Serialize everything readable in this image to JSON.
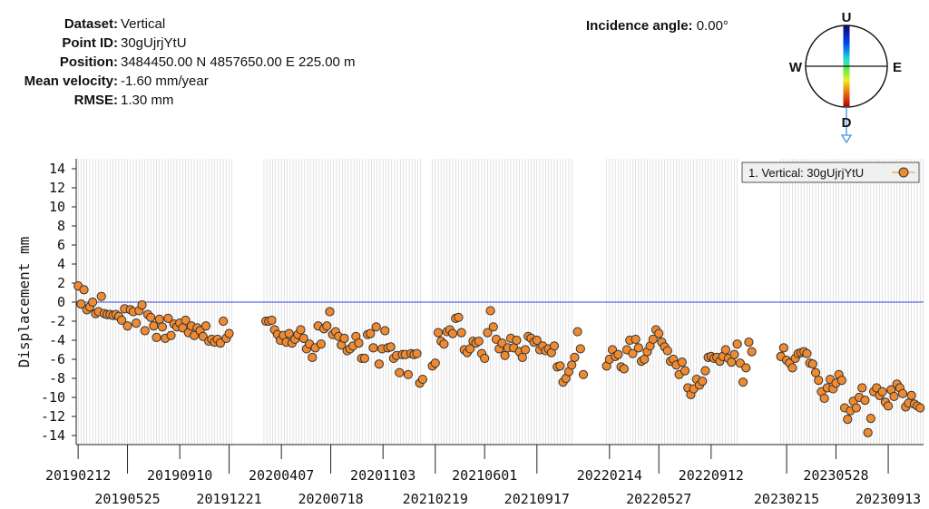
{
  "info": {
    "dataset_label": "Dataset:",
    "dataset": "Vertical",
    "point_label": "Point ID:",
    "point_id": "30gUjrjYtU",
    "position_label": "Position:",
    "position": "3484450.00 N 4857650.00 E 225.00 m",
    "velocity_label": "Mean velocity:",
    "velocity": "-1.60 mm/year",
    "rmse_label": "RMSE:",
    "rmse": "1.30 mm",
    "incidence_label": "Incidence angle:",
    "incidence": "0.00°"
  },
  "compass": {
    "north": "U",
    "south": "D",
    "west": "W",
    "east": "E"
  },
  "colors": {
    "marker": "#f08a30",
    "marker_edge": "#333333",
    "zero_line": "#3344dd",
    "grid": "#cfcfcf",
    "arrow": "#4a90e2"
  },
  "chart_data": {
    "type": "scatter",
    "ylabel": "Displacement mm",
    "ylim": [
      -15,
      15
    ],
    "yticks": [
      14,
      12,
      10,
      8,
      6,
      4,
      2,
      0,
      -2,
      -4,
      -6,
      -8,
      -10,
      -12,
      -14
    ],
    "xlim": [
      "2019-02-08",
      "2023-11-25"
    ],
    "xticks_top": [
      "20190212",
      "20190910",
      "20200407",
      "20201103",
      "20210601",
      "20220214",
      "20220912",
      "20230528"
    ],
    "xticks_bottom": [
      "20190525",
      "20191221",
      "20200718",
      "20210219",
      "20210917",
      "20220527",
      "20230215",
      "20230913"
    ],
    "legend": {
      "label": "1. Vertical: 30gUjrjYtU",
      "position": "top-right"
    },
    "gaps": [
      [
        "2019-12-29",
        "2020-03-01"
      ],
      [
        "2021-01-25",
        "2021-02-12"
      ],
      [
        "2021-12-01",
        "2022-02-07"
      ],
      [
        "2022-11-06",
        "2023-01-31"
      ]
    ],
    "series": [
      {
        "name": "1. Vertical: 30gUjrjYtU",
        "points": [
          [
            "2019-02-12",
            1.7
          ],
          [
            "2019-02-18",
            -0.2
          ],
          [
            "2019-02-24",
            1.3
          ],
          [
            "2019-03-02",
            -0.8
          ],
          [
            "2019-03-08",
            -0.5
          ],
          [
            "2019-03-14",
            0.0
          ],
          [
            "2019-03-20",
            -1.2
          ],
          [
            "2019-03-26",
            -1.0
          ],
          [
            "2019-04-01",
            0.6
          ],
          [
            "2019-04-07",
            -1.2
          ],
          [
            "2019-04-13",
            -1.3
          ],
          [
            "2019-04-19",
            -1.3
          ],
          [
            "2019-04-25",
            -1.4
          ],
          [
            "2019-05-01",
            -1.3
          ],
          [
            "2019-05-07",
            -1.5
          ],
          [
            "2019-05-13",
            -1.9
          ],
          [
            "2019-05-19",
            -0.7
          ],
          [
            "2019-05-25",
            -2.5
          ],
          [
            "2019-05-31",
            -0.8
          ],
          [
            "2019-06-06",
            -1.0
          ],
          [
            "2019-06-12",
            -2.2
          ],
          [
            "2019-06-18",
            -0.9
          ],
          [
            "2019-06-24",
            -0.3
          ],
          [
            "2019-06-30",
            -3.0
          ],
          [
            "2019-07-06",
            -1.3
          ],
          [
            "2019-07-12",
            -1.6
          ],
          [
            "2019-07-18",
            -2.5
          ],
          [
            "2019-07-24",
            -3.7
          ],
          [
            "2019-07-30",
            -1.8
          ],
          [
            "2019-08-05",
            -2.6
          ],
          [
            "2019-08-11",
            -3.8
          ],
          [
            "2019-08-17",
            -1.7
          ],
          [
            "2019-08-23",
            -3.5
          ],
          [
            "2019-08-29",
            -2.3
          ],
          [
            "2019-09-04",
            -2.6
          ],
          [
            "2019-09-10",
            -2.2
          ],
          [
            "2019-09-16",
            -2.7
          ],
          [
            "2019-09-22",
            -1.9
          ],
          [
            "2019-09-28",
            -3.2
          ],
          [
            "2019-10-04",
            -2.5
          ],
          [
            "2019-10-10",
            -3.5
          ],
          [
            "2019-10-16",
            -2.7
          ],
          [
            "2019-10-22",
            -3.0
          ],
          [
            "2019-10-28",
            -3.6
          ],
          [
            "2019-11-03",
            -2.5
          ],
          [
            "2019-11-09",
            -4.1
          ],
          [
            "2019-11-15",
            -3.9
          ],
          [
            "2019-11-21",
            -4.2
          ],
          [
            "2019-11-27",
            -3.9
          ],
          [
            "2019-12-03",
            -4.3
          ],
          [
            "2019-12-09",
            -2.0
          ],
          [
            "2019-12-15",
            -3.8
          ],
          [
            "2019-12-21",
            -3.3
          ],
          [
            "2020-03-06",
            -2.0
          ],
          [
            "2020-03-12",
            -2.0
          ],
          [
            "2020-03-18",
            -1.9
          ],
          [
            "2020-03-24",
            -2.9
          ],
          [
            "2020-03-30",
            -3.4
          ],
          [
            "2020-04-05",
            -4.0
          ],
          [
            "2020-04-11",
            -3.5
          ],
          [
            "2020-04-17",
            -4.2
          ],
          [
            "2020-04-23",
            -3.3
          ],
          [
            "2020-04-29",
            -4.3
          ],
          [
            "2020-05-05",
            -3.9
          ],
          [
            "2020-05-11",
            -3.4
          ],
          [
            "2020-05-17",
            -2.9
          ],
          [
            "2020-05-23",
            -3.8
          ],
          [
            "2020-05-29",
            -4.9
          ],
          [
            "2020-06-04",
            -4.4
          ],
          [
            "2020-06-10",
            -5.8
          ],
          [
            "2020-06-16",
            -4.8
          ],
          [
            "2020-06-22",
            -2.5
          ],
          [
            "2020-06-28",
            -4.4
          ],
          [
            "2020-07-04",
            -2.8
          ],
          [
            "2020-07-10",
            -2.5
          ],
          [
            "2020-07-16",
            -1.0
          ],
          [
            "2020-07-22",
            -3.4
          ],
          [
            "2020-07-28",
            -3.1
          ],
          [
            "2020-08-03",
            -3.6
          ],
          [
            "2020-08-09",
            -4.5
          ],
          [
            "2020-08-15",
            -3.8
          ],
          [
            "2020-08-21",
            -5.1
          ],
          [
            "2020-08-27",
            -4.9
          ],
          [
            "2020-09-02",
            -4.6
          ],
          [
            "2020-09-08",
            -3.6
          ],
          [
            "2020-09-14",
            -4.3
          ],
          [
            "2020-09-20",
            -5.9
          ],
          [
            "2020-09-26",
            -5.9
          ],
          [
            "2020-10-02",
            -3.4
          ],
          [
            "2020-10-08",
            -3.3
          ],
          [
            "2020-10-14",
            -4.8
          ],
          [
            "2020-10-20",
            -2.6
          ],
          [
            "2020-10-26",
            -6.5
          ],
          [
            "2020-11-01",
            -4.9
          ],
          [
            "2020-11-07",
            -3.0
          ],
          [
            "2020-11-13",
            -4.8
          ],
          [
            "2020-11-19",
            -4.7
          ],
          [
            "2020-11-25",
            -5.9
          ],
          [
            "2020-12-01",
            -5.6
          ],
          [
            "2020-12-07",
            -7.4
          ],
          [
            "2020-12-13",
            -5.5
          ],
          [
            "2020-12-19",
            -5.5
          ],
          [
            "2020-12-25",
            -7.6
          ],
          [
            "2020-12-31",
            -5.4
          ],
          [
            "2021-01-06",
            -5.5
          ],
          [
            "2021-01-12",
            -5.4
          ],
          [
            "2021-01-18",
            -8.5
          ],
          [
            "2021-01-24",
            -8.1
          ],
          [
            "2021-02-13",
            -6.7
          ],
          [
            "2021-02-19",
            -6.4
          ],
          [
            "2021-02-25",
            -3.2
          ],
          [
            "2021-03-03",
            -4.1
          ],
          [
            "2021-03-09",
            -4.4
          ],
          [
            "2021-03-15",
            -3.1
          ],
          [
            "2021-03-21",
            -2.9
          ],
          [
            "2021-03-27",
            -3.3
          ],
          [
            "2021-04-02",
            -1.7
          ],
          [
            "2021-04-08",
            -1.6
          ],
          [
            "2021-04-14",
            -3.2
          ],
          [
            "2021-04-20",
            -5.0
          ],
          [
            "2021-04-26",
            -5.3
          ],
          [
            "2021-05-02",
            -4.9
          ],
          [
            "2021-05-08",
            -4.1
          ],
          [
            "2021-05-14",
            -4.3
          ],
          [
            "2021-05-20",
            -4.1
          ],
          [
            "2021-05-26",
            -5.4
          ],
          [
            "2021-06-01",
            -5.9
          ],
          [
            "2021-06-07",
            -3.2
          ],
          [
            "2021-06-13",
            -0.9
          ],
          [
            "2021-06-19",
            -2.6
          ],
          [
            "2021-06-25",
            -3.9
          ],
          [
            "2021-07-01",
            -4.9
          ],
          [
            "2021-07-07",
            -4.3
          ],
          [
            "2021-07-13",
            -5.6
          ],
          [
            "2021-07-19",
            -4.8
          ],
          [
            "2021-07-25",
            -3.8
          ],
          [
            "2021-07-31",
            -4.8
          ],
          [
            "2021-08-06",
            -4.0
          ],
          [
            "2021-08-12",
            -5.2
          ],
          [
            "2021-08-18",
            -5.8
          ],
          [
            "2021-08-24",
            -5.0
          ],
          [
            "2021-08-30",
            -3.6
          ],
          [
            "2021-09-05",
            -3.8
          ],
          [
            "2021-09-11",
            -4.2
          ],
          [
            "2021-09-17",
            -4.0
          ],
          [
            "2021-09-23",
            -5.0
          ],
          [
            "2021-09-29",
            -4.6
          ],
          [
            "2021-10-05",
            -5.1
          ],
          [
            "2021-10-11",
            -4.9
          ],
          [
            "2021-10-17",
            -5.3
          ],
          [
            "2021-10-23",
            -4.6
          ],
          [
            "2021-10-29",
            -6.8
          ],
          [
            "2021-11-04",
            -6.7
          ],
          [
            "2021-11-10",
            -8.4
          ],
          [
            "2021-11-16",
            -8.0
          ],
          [
            "2021-11-22",
            -7.3
          ],
          [
            "2021-11-28",
            -6.6
          ],
          [
            "2021-12-04",
            -5.8
          ],
          [
            "2021-12-10",
            -3.1
          ],
          [
            "2021-12-16",
            -4.9
          ],
          [
            "2021-12-22",
            -7.6
          ],
          [
            "2022-02-08",
            -6.7
          ],
          [
            "2022-02-14",
            -6.0
          ],
          [
            "2022-02-20",
            -5.0
          ],
          [
            "2022-02-26",
            -5.7
          ],
          [
            "2022-03-04",
            -5.5
          ],
          [
            "2022-03-10",
            -6.8
          ],
          [
            "2022-03-16",
            -7.0
          ],
          [
            "2022-03-22",
            -5.0
          ],
          [
            "2022-03-28",
            -4.0
          ],
          [
            "2022-04-03",
            -5.4
          ],
          [
            "2022-04-09",
            -3.9
          ],
          [
            "2022-04-15",
            -4.8
          ],
          [
            "2022-04-21",
            -6.2
          ],
          [
            "2022-04-27",
            -6.0
          ],
          [
            "2022-05-03",
            -5.2
          ],
          [
            "2022-05-09",
            -4.6
          ],
          [
            "2022-05-15",
            -3.9
          ],
          [
            "2022-05-21",
            -2.9
          ],
          [
            "2022-05-27",
            -3.3
          ],
          [
            "2022-06-02",
            -4.2
          ],
          [
            "2022-06-08",
            -4.7
          ],
          [
            "2022-06-14",
            -5.1
          ],
          [
            "2022-06-20",
            -6.2
          ],
          [
            "2022-06-26",
            -6.0
          ],
          [
            "2022-07-02",
            -6.6
          ],
          [
            "2022-07-08",
            -7.6
          ],
          [
            "2022-07-14",
            -6.3
          ],
          [
            "2022-07-20",
            -7.2
          ],
          [
            "2022-07-26",
            -9.0
          ],
          [
            "2022-08-01",
            -9.7
          ],
          [
            "2022-08-07",
            -9.1
          ],
          [
            "2022-08-13",
            -8.1
          ],
          [
            "2022-08-19",
            -8.7
          ],
          [
            "2022-08-25",
            -8.3
          ],
          [
            "2022-08-31",
            -7.2
          ],
          [
            "2022-09-06",
            -5.8
          ],
          [
            "2022-09-12",
            -5.7
          ],
          [
            "2022-09-18",
            -5.9
          ],
          [
            "2022-09-24",
            -5.8
          ],
          [
            "2022-09-30",
            -6.2
          ],
          [
            "2022-10-06",
            -5.7
          ],
          [
            "2022-10-12",
            -5.0
          ],
          [
            "2022-10-18",
            -5.9
          ],
          [
            "2022-10-24",
            -6.3
          ],
          [
            "2022-10-30",
            -5.5
          ],
          [
            "2022-11-05",
            -4.4
          ],
          [
            "2022-11-11",
            -6.4
          ],
          [
            "2022-11-17",
            -8.4
          ],
          [
            "2022-11-23",
            -6.9
          ],
          [
            "2022-11-29",
            -4.2
          ],
          [
            "2022-12-05",
            -5.2
          ],
          [
            "2023-02-03",
            -5.7
          ],
          [
            "2023-02-09",
            -4.8
          ],
          [
            "2023-02-15",
            -6.1
          ],
          [
            "2023-02-21",
            -6.4
          ],
          [
            "2023-02-27",
            -6.9
          ],
          [
            "2023-03-05",
            -5.9
          ],
          [
            "2023-03-11",
            -5.4
          ],
          [
            "2023-03-17",
            -5.3
          ],
          [
            "2023-03-23",
            -5.2
          ],
          [
            "2023-03-29",
            -5.4
          ],
          [
            "2023-04-04",
            -6.4
          ],
          [
            "2023-04-10",
            -6.5
          ],
          [
            "2023-04-16",
            -7.4
          ],
          [
            "2023-04-22",
            -8.2
          ],
          [
            "2023-04-28",
            -9.4
          ],
          [
            "2023-05-04",
            -10.1
          ],
          [
            "2023-05-10",
            -9.0
          ],
          [
            "2023-05-16",
            -8.1
          ],
          [
            "2023-05-22",
            -9.1
          ],
          [
            "2023-05-28",
            -8.5
          ],
          [
            "2023-06-03",
            -7.6
          ],
          [
            "2023-06-09",
            -8.2
          ],
          [
            "2023-06-15",
            -11.1
          ],
          [
            "2023-06-21",
            -12.3
          ],
          [
            "2023-06-27",
            -11.4
          ],
          [
            "2023-07-03",
            -10.4
          ],
          [
            "2023-07-09",
            -11.1
          ],
          [
            "2023-07-15",
            -10.0
          ],
          [
            "2023-07-21",
            -9.0
          ],
          [
            "2023-07-27",
            -10.3
          ],
          [
            "2023-08-02",
            -13.7
          ],
          [
            "2023-08-08",
            -12.2
          ],
          [
            "2023-08-14",
            -9.4
          ],
          [
            "2023-08-20",
            -9.0
          ],
          [
            "2023-08-26",
            -9.8
          ],
          [
            "2023-09-01",
            -9.4
          ],
          [
            "2023-09-07",
            -10.5
          ],
          [
            "2023-09-13",
            -10.9
          ],
          [
            "2023-09-19",
            -9.2
          ],
          [
            "2023-09-25",
            -9.9
          ],
          [
            "2023-10-01",
            -8.6
          ],
          [
            "2023-10-07",
            -9.0
          ],
          [
            "2023-10-13",
            -9.6
          ],
          [
            "2023-10-19",
            -11.0
          ],
          [
            "2023-10-25",
            -10.6
          ],
          [
            "2023-10-31",
            -9.8
          ],
          [
            "2023-11-06",
            -10.7
          ],
          [
            "2023-11-12",
            -10.9
          ],
          [
            "2023-11-18",
            -11.1
          ]
        ]
      }
    ]
  }
}
